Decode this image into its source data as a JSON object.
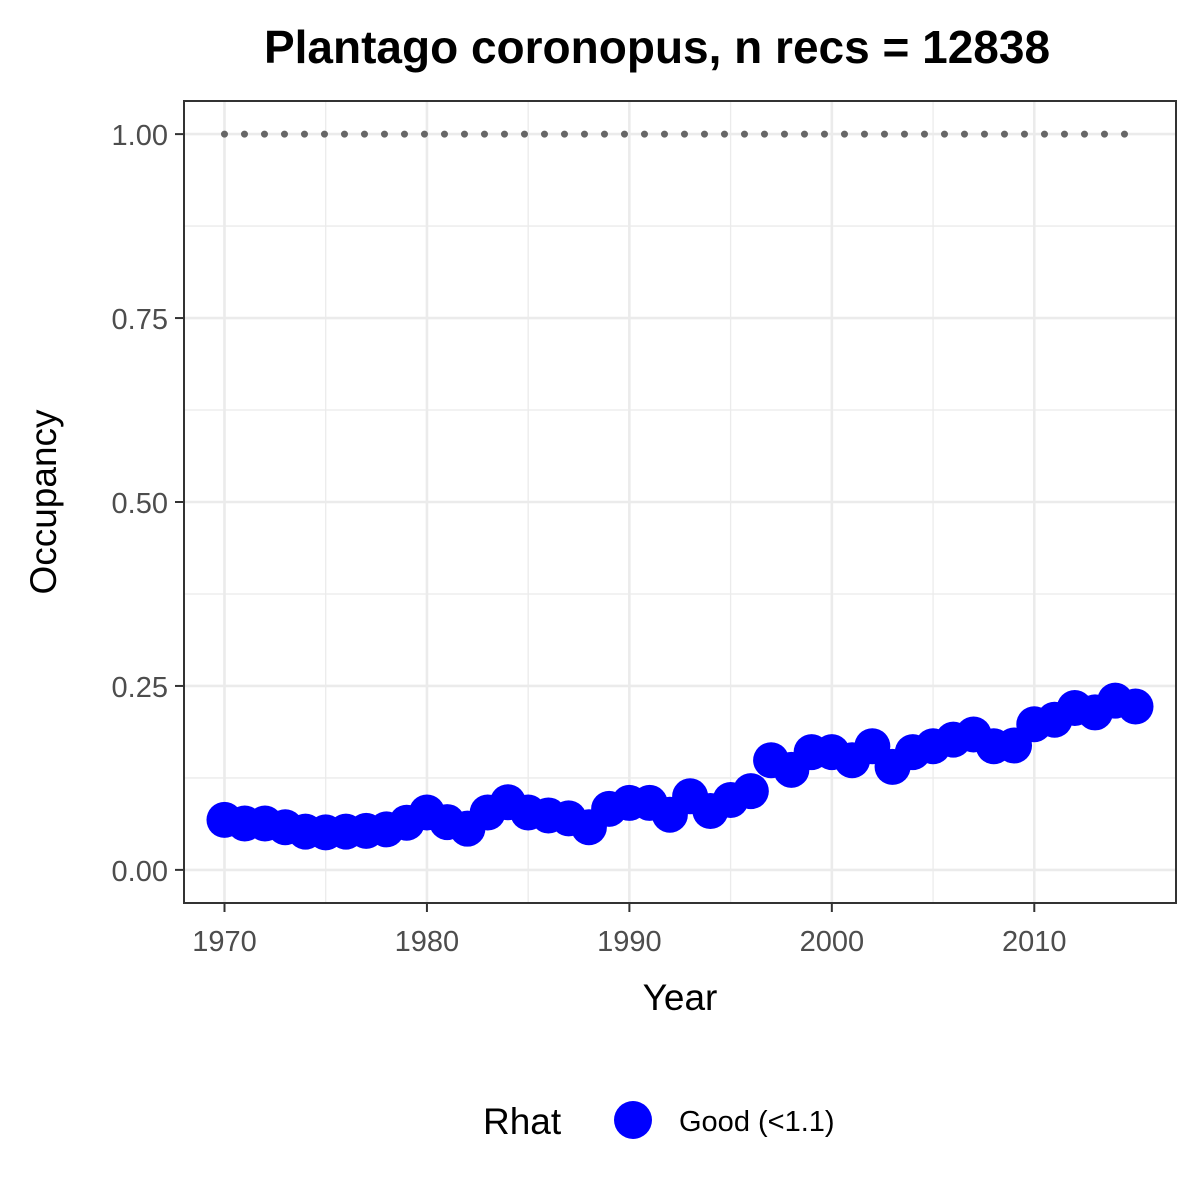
{
  "chart_data": {
    "type": "scatter",
    "title": "Plantago coronopus, n recs = 12838",
    "xlabel": "Year",
    "ylabel": "Occupancy",
    "xlim": [
      1968,
      2017
    ],
    "ylim": [
      -0.045,
      1.045
    ],
    "x_ticks": [
      1970,
      1980,
      1990,
      2000,
      2010
    ],
    "x_tick_labels": [
      "1970",
      "1980",
      "1990",
      "2000",
      "2010"
    ],
    "y_ticks": [
      0,
      0.25,
      0.5,
      0.75,
      1.0
    ],
    "y_tick_labels": [
      "0.00",
      "0.25",
      "0.50",
      "0.75",
      "1.00"
    ],
    "grid": true,
    "legend": {
      "title": "Rhat",
      "position": "bottom",
      "entries": [
        {
          "label": "Good (<1.1)",
          "color": "#0000ff"
        }
      ]
    },
    "reference_line": {
      "y": 1.0,
      "style": "dotted",
      "color": "#666666"
    },
    "series": [
      {
        "name": "Good (<1.1)",
        "color": "#0000ff",
        "x": [
          1970,
          1971,
          1972,
          1973,
          1974,
          1975,
          1976,
          1977,
          1978,
          1979,
          1980,
          1981,
          1982,
          1983,
          1984,
          1985,
          1986,
          1987,
          1988,
          1989,
          1990,
          1991,
          1992,
          1993,
          1994,
          1995,
          1996,
          1997,
          1998,
          1999,
          2000,
          2001,
          2002,
          2003,
          2004,
          2005,
          2006,
          2007,
          2008,
          2009,
          2010,
          2011,
          2012,
          2013,
          2014,
          2015
        ],
        "y": [
          0.068,
          0.063,
          0.063,
          0.058,
          0.052,
          0.051,
          0.052,
          0.053,
          0.055,
          0.064,
          0.078,
          0.065,
          0.056,
          0.078,
          0.092,
          0.078,
          0.074,
          0.07,
          0.058,
          0.083,
          0.091,
          0.091,
          0.075,
          0.1,
          0.08,
          0.095,
          0.107,
          0.149,
          0.136,
          0.16,
          0.16,
          0.149,
          0.168,
          0.14,
          0.16,
          0.168,
          0.177,
          0.184,
          0.168,
          0.169,
          0.198,
          0.204,
          0.22,
          0.214,
          0.23,
          0.222
        ]
      }
    ]
  },
  "colors": {
    "points": "#0000ff",
    "reference_line": "#666666",
    "grid": "#ebebeb",
    "panel_border": "#333333"
  }
}
